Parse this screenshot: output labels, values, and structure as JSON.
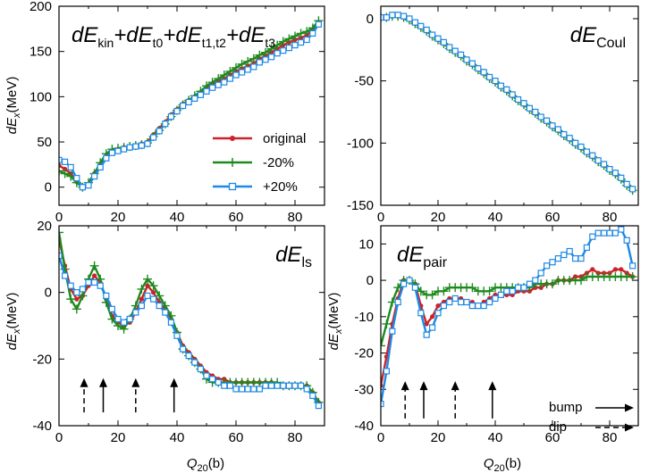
{
  "figure": {
    "ylabel": "dE",
    "ylabel_sub": "x",
    "ylabel_unit": "(MeV)",
    "xlabel": "Q",
    "xlabel_sub": "20",
    "xlabel_unit": "(b)"
  },
  "legend": {
    "original": "original",
    "minus20": "-20%",
    "plus20": "+20%"
  },
  "arrow_legend": {
    "bump": "bump",
    "dip": "dip"
  },
  "colors": {
    "original": "#cc2229",
    "minus20": "#1e8a1e",
    "plus20": "#1e88e5"
  },
  "chart_data": [
    {
      "id": "kin",
      "type": "line",
      "title_parts": [
        "dE",
        "kin",
        "+dE",
        "t0",
        "+dE",
        "t1,t2",
        "+dE",
        "t3"
      ],
      "xlim": [
        0,
        90
      ],
      "ylim": [
        -20,
        200
      ],
      "xticks": [
        0,
        20,
        40,
        60,
        80
      ],
      "yticks": [
        0,
        50,
        100,
        150,
        200
      ],
      "x": [
        0,
        2,
        4,
        6,
        8,
        10,
        12,
        14,
        16,
        18,
        20,
        22,
        24,
        26,
        28,
        30,
        32,
        34,
        36,
        38,
        40,
        42,
        44,
        46,
        48,
        50,
        52,
        54,
        56,
        58,
        60,
        62,
        64,
        66,
        68,
        70,
        72,
        74,
        76,
        78,
        80,
        82,
        84,
        86,
        88
      ],
      "series": [
        {
          "name": "original",
          "values": [
            24,
            20,
            15,
            6,
            0,
            3,
            15,
            25,
            34,
            40,
            42,
            44,
            45,
            46,
            48,
            50,
            58,
            65,
            72,
            80,
            86,
            92,
            96,
            100,
            105,
            110,
            114,
            117,
            120,
            124,
            128,
            131,
            134,
            137,
            142,
            145,
            149,
            153,
            157,
            160,
            163,
            165,
            168,
            174,
            182
          ]
        },
        {
          "name": "-20%",
          "values": [
            18,
            15,
            12,
            5,
            0,
            5,
            15,
            27,
            37,
            42,
            43,
            44,
            45,
            46,
            47,
            49,
            56,
            63,
            70,
            78,
            85,
            91,
            96,
            101,
            106,
            112,
            116,
            120,
            124,
            128,
            132,
            136,
            139,
            142,
            146,
            149,
            153,
            157,
            161,
            164,
            167,
            170,
            172,
            176,
            184
          ]
        },
        {
          "name": "+20%",
          "values": [
            30,
            28,
            22,
            10,
            0,
            2,
            12,
            22,
            32,
            38,
            40,
            42,
            44,
            45,
            46,
            48,
            55,
            62,
            70,
            78,
            84,
            90,
            94,
            98,
            102,
            106,
            110,
            113,
            116,
            120,
            124,
            127,
            130,
            133,
            138,
            141,
            144,
            148,
            151,
            154,
            157,
            160,
            163,
            170,
            180
          ]
        }
      ],
      "legend": true,
      "title_pos": "top-left"
    },
    {
      "id": "coul",
      "type": "line",
      "title_parts": [
        "dE",
        "Coul"
      ],
      "xlim": [
        0,
        90
      ],
      "ylim": [
        -150,
        10
      ],
      "xticks": [
        0,
        20,
        40,
        60,
        80
      ],
      "yticks": [
        -150,
        -100,
        -50,
        0
      ],
      "x": [
        0,
        2,
        4,
        6,
        8,
        10,
        12,
        14,
        16,
        18,
        20,
        22,
        24,
        26,
        28,
        30,
        32,
        34,
        36,
        38,
        40,
        42,
        44,
        46,
        48,
        50,
        52,
        54,
        56,
        58,
        60,
        62,
        64,
        66,
        68,
        70,
        72,
        74,
        76,
        78,
        80,
        82,
        84,
        86,
        88
      ],
      "series": [
        {
          "name": "original",
          "values": [
            1,
            1,
            2,
            2,
            1,
            -1,
            -4,
            -7,
            -10,
            -13,
            -17,
            -20,
            -23,
            -26,
            -30,
            -33,
            -37,
            -40,
            -44,
            -47,
            -51,
            -54,
            -58,
            -62,
            -65,
            -69,
            -72,
            -76,
            -79,
            -83,
            -86,
            -90,
            -93,
            -97,
            -100,
            -104,
            -107,
            -111,
            -114,
            -118,
            -121,
            -125,
            -128,
            -133,
            -137
          ]
        },
        {
          "name": "-20%",
          "values": [
            1,
            1,
            2,
            2,
            1,
            -1,
            -4,
            -7,
            -10,
            -14,
            -17,
            -20,
            -24,
            -27,
            -30,
            -34,
            -37,
            -41,
            -44,
            -48,
            -51,
            -55,
            -58,
            -62,
            -66,
            -69,
            -73,
            -76,
            -80,
            -83,
            -87,
            -90,
            -94,
            -97,
            -101,
            -104,
            -108,
            -111,
            -115,
            -118,
            -122,
            -125,
            -129,
            -134,
            -138
          ]
        },
        {
          "name": "+20%",
          "values": [
            1,
            1,
            3,
            3,
            2,
            0,
            -3,
            -6,
            -9,
            -13,
            -16,
            -19,
            -23,
            -26,
            -29,
            -33,
            -36,
            -40,
            -43,
            -47,
            -50,
            -54,
            -57,
            -61,
            -65,
            -68,
            -72,
            -75,
            -79,
            -82,
            -86,
            -89,
            -93,
            -96,
            -100,
            -103,
            -107,
            -110,
            -114,
            -117,
            -121,
            -124,
            -128,
            -133,
            -137
          ]
        }
      ],
      "title_pos": "top-right"
    },
    {
      "id": "ls",
      "type": "line",
      "title_parts": [
        "dE",
        "ls"
      ],
      "xlim": [
        0,
        90
      ],
      "ylim": [
        -40,
        20
      ],
      "xticks": [
        0,
        20,
        40,
        60,
        80
      ],
      "yticks": [
        -40,
        -20,
        0,
        20
      ],
      "x": [
        0,
        2,
        4,
        6,
        8,
        10,
        12,
        14,
        16,
        18,
        20,
        22,
        24,
        26,
        28,
        30,
        32,
        34,
        36,
        38,
        40,
        42,
        44,
        46,
        48,
        50,
        52,
        54,
        56,
        58,
        60,
        62,
        64,
        66,
        68,
        70,
        72,
        74,
        76,
        78,
        80,
        82,
        84,
        86,
        88
      ],
      "series": [
        {
          "name": "original",
          "values": [
            16,
            8,
            1,
            -2,
            -1,
            2,
            5,
            3,
            -2,
            -7,
            -9,
            -10,
            -9,
            -6,
            -2,
            2,
            0,
            -3,
            -5,
            -8,
            -12,
            -16,
            -18,
            -20,
            -22,
            -24,
            -25,
            -26,
            -26,
            -27,
            -27,
            -27,
            -27,
            -27,
            -27,
            -27,
            -27,
            -28,
            -28,
            -28,
            -28,
            -28,
            -28,
            -30,
            -33
          ]
        },
        {
          "name": "-20%",
          "values": [
            18,
            7,
            -2,
            -5,
            -1,
            4,
            8,
            4,
            -3,
            -8,
            -10,
            -11,
            -8,
            -4,
            1,
            4,
            2,
            -1,
            -4,
            -7,
            -12,
            -17,
            -19,
            -21,
            -23,
            -26,
            -27,
            -27,
            -27,
            -27,
            -27,
            -27,
            -27,
            -27,
            -27,
            -27,
            -27,
            -27,
            -28,
            -28,
            -28,
            -28,
            -28,
            -30,
            -33
          ]
        },
        {
          "name": "+20%",
          "values": [
            11,
            5,
            2,
            0,
            1,
            3,
            3,
            2,
            -1,
            -5,
            -8,
            -9,
            -8,
            -6,
            -4,
            -1,
            -2,
            -4,
            -6,
            -9,
            -13,
            -17,
            -19,
            -21,
            -23,
            -25,
            -26,
            -27,
            -28,
            -28,
            -29,
            -29,
            -29,
            -29,
            -29,
            -28,
            -28,
            -28,
            -28,
            -28,
            -28,
            -28,
            -29,
            -31,
            -34
          ]
        }
      ],
      "arrows": [
        {
          "x": 8.5,
          "kind": "dip"
        },
        {
          "x": 15,
          "kind": "bump"
        },
        {
          "x": 26,
          "kind": "dip"
        },
        {
          "x": 39,
          "kind": "bump"
        }
      ],
      "arrow_range": [
        -36,
        -26
      ],
      "title_pos": "top-right"
    },
    {
      "id": "pair",
      "type": "line",
      "title_parts": [
        "dE",
        "pair"
      ],
      "xlim": [
        0,
        90
      ],
      "ylim": [
        -40,
        15
      ],
      "xticks": [
        0,
        20,
        40,
        60,
        80
      ],
      "yticks": [
        -40,
        -30,
        -20,
        -10,
        0,
        10
      ],
      "x": [
        0,
        2,
        4,
        6,
        8,
        10,
        12,
        14,
        16,
        18,
        20,
        22,
        24,
        26,
        28,
        30,
        32,
        34,
        36,
        38,
        40,
        42,
        44,
        46,
        48,
        50,
        52,
        54,
        56,
        58,
        60,
        62,
        64,
        66,
        68,
        70,
        72,
        74,
        76,
        78,
        80,
        82,
        84,
        86,
        88
      ],
      "series": [
        {
          "name": "original",
          "values": [
            -29,
            -21,
            -12,
            -5,
            0,
            0,
            -1,
            -7,
            -12,
            -10,
            -7,
            -6,
            -5,
            -5,
            -5,
            -6,
            -6,
            -7,
            -6,
            -5,
            -4,
            -4,
            -4,
            -4,
            -3,
            -3,
            -3,
            -2,
            -2,
            -1,
            -1,
            0,
            0,
            0,
            1,
            1,
            2,
            3,
            2,
            2,
            2,
            3,
            3,
            2,
            1
          ]
        },
        {
          "name": "-20%",
          "values": [
            -18,
            -12,
            -6,
            -2,
            0,
            0,
            -1,
            -3,
            -4,
            -4,
            -3,
            -3,
            -2,
            -2,
            -2,
            -2,
            -2,
            -3,
            -3,
            -3,
            -2,
            -2,
            -2,
            -2,
            -2,
            -2,
            -2,
            -1,
            -1,
            -1,
            -1,
            0,
            0,
            0,
            0,
            0,
            1,
            1,
            1,
            1,
            1,
            1,
            1,
            1,
            1
          ]
        },
        {
          "name": "+20%",
          "values": [
            -34,
            -25,
            -14,
            -6,
            -1,
            0,
            -2,
            -9,
            -15,
            -13,
            -9,
            -7,
            -6,
            -5,
            -6,
            -6,
            -7,
            -7,
            -7,
            -6,
            -5,
            -4,
            -3,
            -3,
            -2,
            -2,
            -1,
            0,
            2,
            4,
            5,
            6,
            7,
            8,
            6,
            6,
            9,
            12,
            13,
            13,
            13,
            13,
            14,
            11,
            4
          ]
        }
      ],
      "arrows": [
        {
          "x": 8.5,
          "kind": "dip"
        },
        {
          "x": 15,
          "kind": "bump"
        },
        {
          "x": 26,
          "kind": "dip"
        },
        {
          "x": 39,
          "kind": "bump"
        }
      ],
      "arrow_range": [
        -38,
        -28
      ],
      "title_pos": "top-left",
      "arrow_legend": true
    }
  ]
}
